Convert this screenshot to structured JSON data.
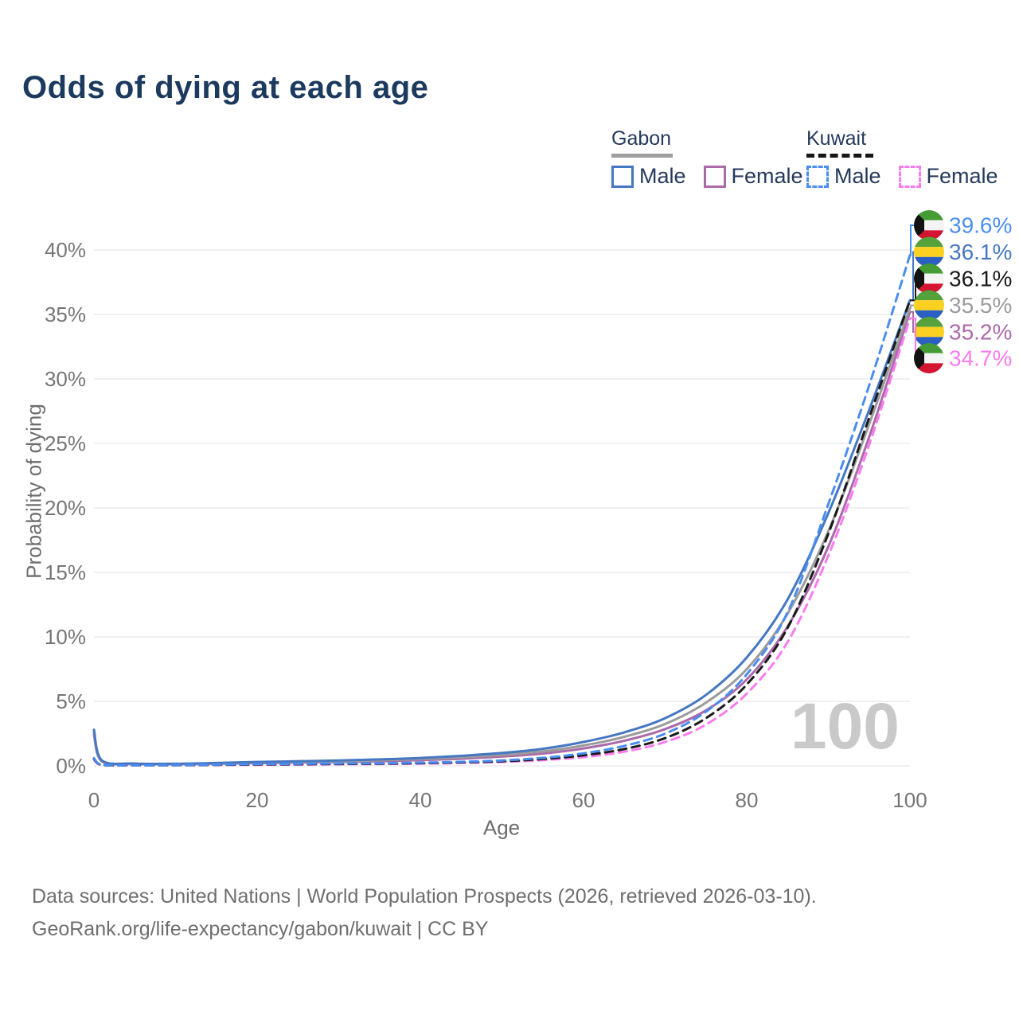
{
  "title": "Odds of dying at each age",
  "watermark": "100",
  "legend": {
    "groups": [
      {
        "country": "Gabon",
        "line_style": "solid",
        "line_color": "#9e9e9e",
        "items": [
          {
            "label": "Male",
            "color": "#4577c2",
            "dashed": false
          },
          {
            "label": "Female",
            "color": "#ab6aa9",
            "dashed": false
          }
        ]
      },
      {
        "country": "Kuwait",
        "line_style": "dashed",
        "line_color": "#161616",
        "items": [
          {
            "label": "Male",
            "color": "#4a8df0",
            "dashed": true
          },
          {
            "label": "Female",
            "color": "#fb7bef",
            "dashed": true
          }
        ]
      }
    ]
  },
  "chart_data": {
    "type": "line",
    "title": "Odds of dying at each age",
    "xlabel": "Age",
    "ylabel": "Probability of dying",
    "xlim": [
      0,
      100
    ],
    "ylim_pct": [
      0,
      42
    ],
    "grid": "horizontal",
    "x_ticks": [
      {
        "v": 0,
        "label": "0"
      },
      {
        "v": 20,
        "label": "20"
      },
      {
        "v": 40,
        "label": "40"
      },
      {
        "v": 60,
        "label": "60"
      },
      {
        "v": 80,
        "label": "80"
      },
      {
        "v": 100,
        "label": "100"
      }
    ],
    "y_ticks": [
      {
        "v": 0,
        "label": "0%"
      },
      {
        "v": 5,
        "label": "5%"
      },
      {
        "v": 10,
        "label": "10%"
      },
      {
        "v": 15,
        "label": "15%"
      },
      {
        "v": 20,
        "label": "20%"
      },
      {
        "v": 25,
        "label": "25%"
      },
      {
        "v": 30,
        "label": "30%"
      },
      {
        "v": 35,
        "label": "35%"
      },
      {
        "v": 40,
        "label": "40%"
      }
    ],
    "ages": [
      0,
      1,
      5,
      10,
      15,
      20,
      25,
      30,
      35,
      40,
      45,
      50,
      55,
      60,
      65,
      70,
      75,
      80,
      85,
      90,
      95,
      100
    ],
    "series": [
      {
        "name": "Gabon Female",
        "country": "Gabon",
        "sex": "female",
        "color": "#ab6aa9",
        "dashed": false,
        "values": [
          2.4,
          0.32,
          0.14,
          0.13,
          0.16,
          0.21,
          0.26,
          0.3,
          0.36,
          0.44,
          0.55,
          0.72,
          0.95,
          1.35,
          1.95,
          2.85,
          4.3,
          6.7,
          10.8,
          17.0,
          25.5,
          35.2
        ]
      },
      {
        "name": "Gabon Both sexes",
        "country": "Gabon",
        "sex": "both",
        "color": "#9b9b9b",
        "dashed": false,
        "values": [
          2.6,
          0.36,
          0.16,
          0.14,
          0.19,
          0.26,
          0.31,
          0.36,
          0.43,
          0.52,
          0.66,
          0.85,
          1.12,
          1.58,
          2.25,
          3.25,
          4.9,
          7.5,
          11.8,
          18.2,
          26.5,
          35.5
        ]
      },
      {
        "name": "Gabon Male",
        "country": "Gabon",
        "sex": "male",
        "color": "#4577c2",
        "dashed": false,
        "values": [
          2.8,
          0.4,
          0.18,
          0.16,
          0.22,
          0.3,
          0.36,
          0.42,
          0.5,
          0.61,
          0.78,
          1.0,
          1.32,
          1.85,
          2.6,
          3.7,
          5.5,
          8.4,
          12.9,
          19.6,
          27.6,
          36.1
        ]
      },
      {
        "name": "Kuwait Female",
        "country": "Kuwait",
        "sex": "female",
        "color": "#fb7bef",
        "dashed": true,
        "values": [
          0.5,
          0.06,
          0.04,
          0.05,
          0.06,
          0.08,
          0.1,
          0.12,
          0.14,
          0.17,
          0.22,
          0.3,
          0.44,
          0.68,
          1.1,
          1.85,
          3.2,
          5.6,
          9.6,
          16.3,
          24.9,
          34.7
        ]
      },
      {
        "name": "Kuwait Both sexes",
        "country": "Kuwait",
        "sex": "both",
        "color": "#1a1a1a",
        "dashed": true,
        "values": [
          0.55,
          0.07,
          0.05,
          0.05,
          0.08,
          0.11,
          0.13,
          0.15,
          0.17,
          0.21,
          0.27,
          0.36,
          0.53,
          0.82,
          1.3,
          2.15,
          3.7,
          6.3,
          10.7,
          18.0,
          27.0,
          36.1
        ]
      },
      {
        "name": "Kuwait Male",
        "country": "Kuwait",
        "sex": "male",
        "color": "#4a8df0",
        "dashed": true,
        "values": [
          0.6,
          0.08,
          0.05,
          0.06,
          0.1,
          0.14,
          0.16,
          0.18,
          0.2,
          0.25,
          0.31,
          0.42,
          0.62,
          0.97,
          1.55,
          2.5,
          4.2,
          7.1,
          11.9,
          20.3,
          29.5,
          39.6
        ]
      }
    ],
    "end_labels": [
      {
        "series": "Kuwait Male",
        "flag": "kuwait",
        "label": "39.6%",
        "value_pct": 39.6,
        "color": "#4a8df0"
      },
      {
        "series": "Gabon Male",
        "flag": "gabon",
        "label": "36.1%",
        "value_pct": 36.1,
        "color": "#4577c2"
      },
      {
        "series": "Kuwait Both sexes",
        "flag": "kuwait",
        "label": "36.1%",
        "value_pct": 36.1,
        "color": "#1a1a1a"
      },
      {
        "series": "Gabon Both sexes",
        "flag": "gabon",
        "label": "35.5%",
        "value_pct": 35.5,
        "color": "#9b9b9b"
      },
      {
        "series": "Gabon Female",
        "flag": "gabon",
        "label": "35.2%",
        "value_pct": 35.2,
        "color": "#ab6aa9"
      },
      {
        "series": "Kuwait Female",
        "flag": "kuwait",
        "label": "34.7%",
        "value_pct": 34.7,
        "color": "#fb7bef"
      }
    ],
    "flag_colors": {
      "gabon": {
        "green": "#55a13c",
        "yellow": "#fcd021",
        "blue": "#2c5fc3"
      },
      "kuwait": {
        "green": "#459b35",
        "white": "#f4f4f4",
        "red": "#d41430",
        "black": "#121212"
      }
    },
    "style": {
      "grid_color": "#ececef",
      "tick_color": "#767676",
      "line_width": 3
    }
  },
  "footer": {
    "line1": "Data sources: United Nations | World Population Prospects (2026, retrieved 2026-03-10).",
    "line2": "GeoRank.org/life-expectancy/gabon/kuwait | CC BY"
  }
}
